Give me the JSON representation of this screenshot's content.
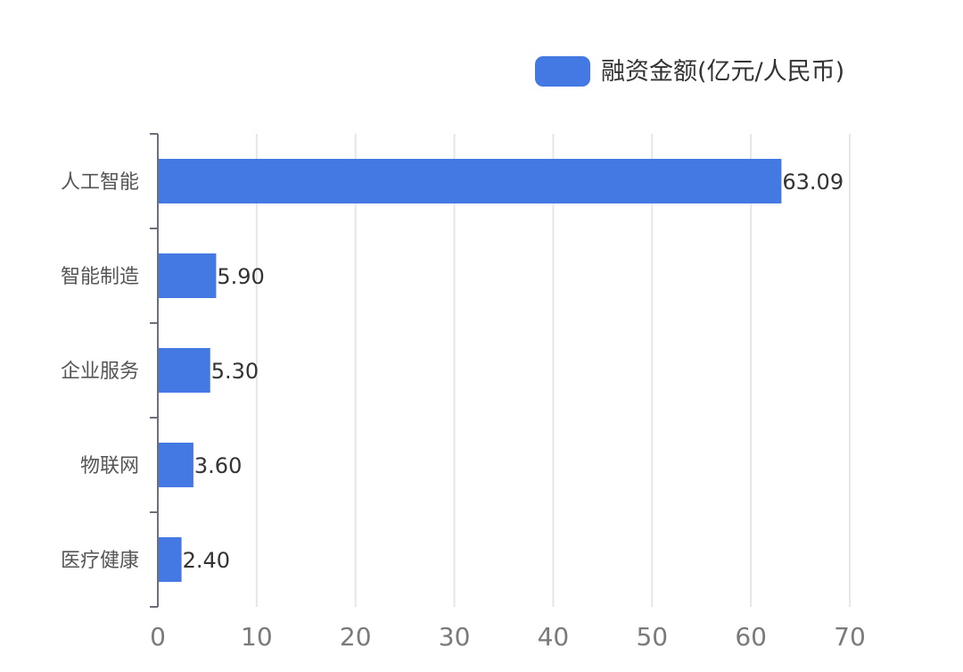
{
  "chart_data": {
    "type": "bar",
    "orientation": "horizontal",
    "categories": [
      "人工智能",
      "智能制造",
      "企业服务",
      "物联网",
      "医疗健康"
    ],
    "series": [
      {
        "name": "融资金额(亿元/人民币)",
        "values": [
          63.09,
          5.9,
          5.3,
          3.6,
          2.4
        ],
        "color": "#4479e3"
      }
    ],
    "data_labels": [
      "63.09",
      "5.90",
      "5.30",
      "3.60",
      "2.40"
    ],
    "x_ticks": [
      "0",
      "10",
      "20",
      "30",
      "40",
      "50",
      "60",
      "70"
    ],
    "xlim": [
      0,
      70
    ],
    "grid": true,
    "legend_position": "top-right"
  }
}
